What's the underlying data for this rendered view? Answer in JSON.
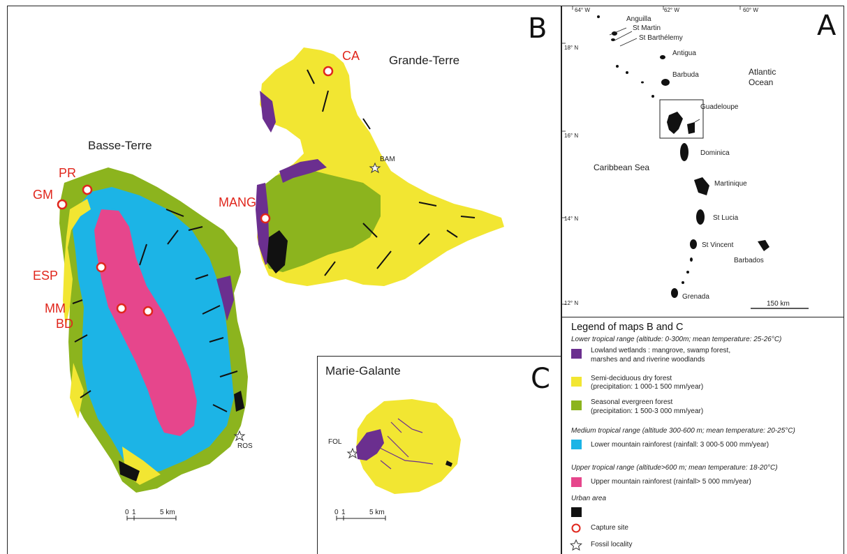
{
  "panels": {
    "b_letter": "B",
    "a_letter": "A",
    "c_letter": "C"
  },
  "map_b": {
    "grande_terre": "Grande-Terre",
    "basse_terre": "Basse-Terre",
    "capture_sites": [
      "CA",
      "PR",
      "GM",
      "MANG",
      "ESP",
      "MM",
      "BD"
    ],
    "fossil_localities": [
      "BAM",
      "ROS"
    ],
    "scale": {
      "tick0": "0",
      "tick1": "1",
      "tick5": "5 km"
    }
  },
  "map_c": {
    "title": "Marie-Galante",
    "fossil_locality": "FOL",
    "scale": {
      "tick0": "0",
      "tick1": "1",
      "tick5": "5 km"
    }
  },
  "map_a": {
    "longitudes": [
      "64° W",
      "62° W",
      "60° W"
    ],
    "latitudes": [
      "18° N",
      "16° N",
      "14° N",
      "12° N"
    ],
    "islands": [
      "Anguilla",
      "St Martin",
      "St Barthélemy",
      "Antigua",
      "Barbuda",
      "Guadeloupe",
      "Dominica",
      "Martinique",
      "St Lucia",
      "St Vincent",
      "Barbados",
      "Grenada"
    ],
    "ocean": "Atlantic\nOcean",
    "ocean_line1": "Atlantic",
    "ocean_line2": "Ocean",
    "sea": "Caribbean Sea",
    "scale": "150 km"
  },
  "legend": {
    "title": "Legend of maps B and C",
    "lower_head": "Lower tropical range (altitude: 0-300m; mean temperature: 25-26°C)",
    "wetlands_1": "Lowland wetlands : mangrove, swamp forest,",
    "wetlands_2": "marshes and and riverine woodlands",
    "dry_1": "Semi-deciduous dry forest",
    "dry_2": "(precipitation: 1 000-1 500 mm/year)",
    "seasonal_1": "Seasonal evergreen forest",
    "seasonal_2": "(precipitation: 1 500-3 000 mm/year)",
    "medium_head": "Medium tropical range (altitude 300-600 m; mean temperature: 20-25°C)",
    "lower_mountain": "Lower mountain rainforest (rainfall: 3 000-5 000 mm/year)",
    "upper_head": "Upper tropical range (altitude>600 m; mean temperature: 18-20°C)",
    "upper_mountain": "Upper mountain rainforest (rainfall> 5 000 mm/year)",
    "urban_head": "Urban area",
    "capture_site": "Capture site",
    "fossil_locality": "Fossil locality",
    "colors": {
      "wetlands": "#6b2f8f",
      "dry": "#f2e632",
      "seasonal": "#8cb41e",
      "lower_mountain": "#1cb4e6",
      "upper_mountain": "#e6468c",
      "urban": "#111111",
      "capture": "#e0261c"
    }
  }
}
